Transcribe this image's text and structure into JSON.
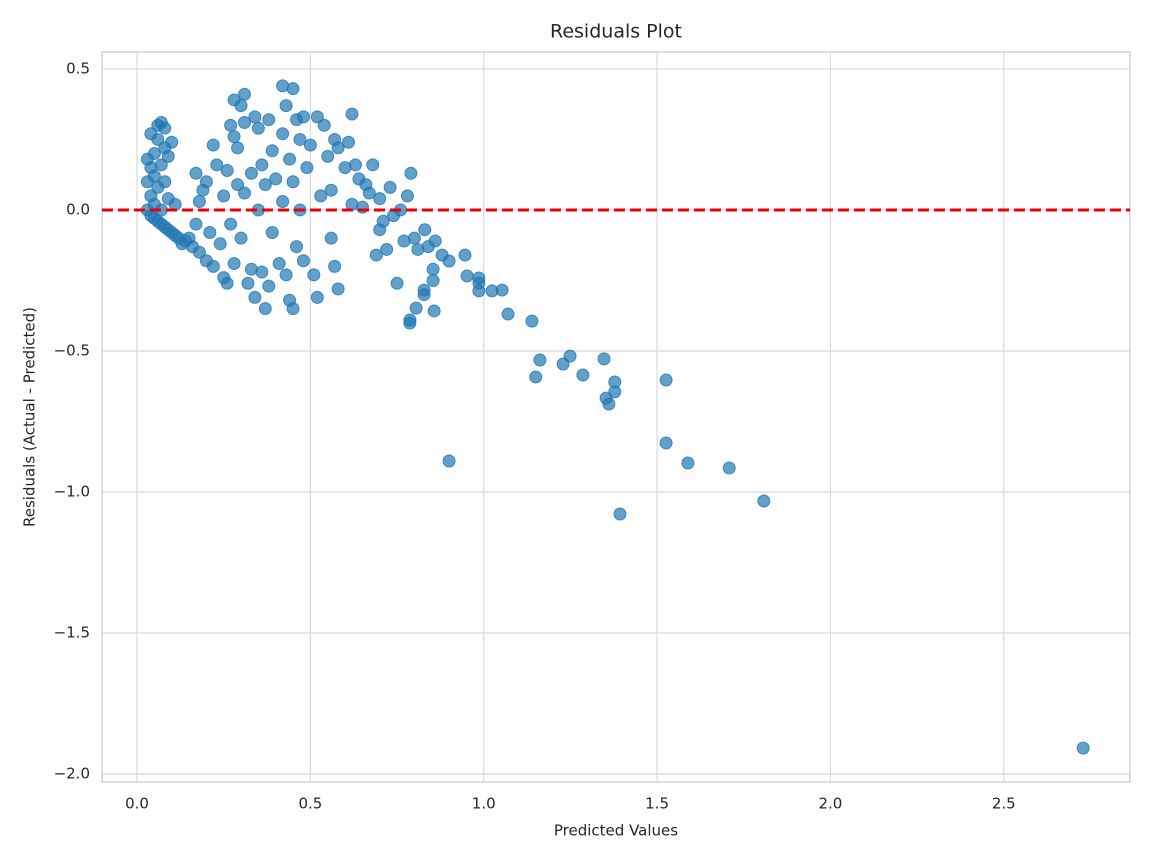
{
  "chart_data": {
    "type": "scatter",
    "title": "Residuals Plot",
    "x_label": "Predicted Values",
    "y_label": "Residuals (Actual - Predicted)",
    "color": "#1f77b4",
    "grid": true,
    "xlim": [
      -0.101,
      2.864
    ],
    "ylim": [
      -2.028,
      0.56
    ],
    "xticks": [
      {
        "value": 0,
        "label": "0.0"
      },
      0.5,
      {
        "value": 1,
        "label": "1.0"
      },
      1.5,
      {
        "value": 2,
        "label": "2.0"
      },
      2.5
    ],
    "yticks": [
      {
        "value": -2,
        "label": "−2.0"
      },
      {
        "value": -1.5,
        "label": "−1.5"
      },
      {
        "value": -1,
        "label": "−1.0"
      },
      {
        "value": -0.5,
        "label": "−0.5"
      },
      {
        "value": 0,
        "label": "0.0"
      },
      0.5
    ],
    "reference_line": {
      "y": 0,
      "color": "#e8000b",
      "style": "dashed"
    },
    "x": [
      0.03,
      0.03,
      0.03,
      0.04,
      0.04,
      0.04,
      0.04,
      0.05,
      0.05,
      0.05,
      0.05,
      0.06,
      0.06,
      0.06,
      0.06,
      0.07,
      0.07,
      0.07,
      0.07,
      0.08,
      0.08,
      0.08,
      0.08,
      0.09,
      0.09,
      0.09,
      0.1,
      0.1,
      0.11,
      0.11,
      0.12,
      0.13,
      0.14,
      0.15,
      0.16,
      0.17,
      0.17,
      0.18,
      0.18,
      0.19,
      0.2,
      0.2,
      0.21,
      0.22,
      0.22,
      0.23,
      0.24,
      0.25,
      0.25,
      0.26,
      0.26,
      0.27,
      0.27,
      0.28,
      0.28,
      0.28,
      0.29,
      0.29,
      0.3,
      0.3,
      0.31,
      0.31,
      0.31,
      0.32,
      0.33,
      0.33,
      0.34,
      0.34,
      0.35,
      0.35,
      0.36,
      0.36,
      0.37,
      0.37,
      0.38,
      0.38,
      0.39,
      0.39,
      0.4,
      0.41,
      0.42,
      0.42,
      0.42,
      0.43,
      0.43,
      0.44,
      0.44,
      0.45,
      0.45,
      0.45,
      0.46,
      0.46,
      0.47,
      0.47,
      0.48,
      0.48,
      0.49,
      0.5,
      0.51,
      0.52,
      0.52,
      0.53,
      0.54,
      0.55,
      0.56,
      0.56,
      0.57,
      0.57,
      0.58,
      0.58,
      0.6,
      0.61,
      0.62,
      0.62,
      0.63,
      0.64,
      0.65,
      0.66,
      0.67,
      0.68,
      0.69,
      0.7,
      0.7,
      0.71,
      0.72,
      0.73,
      0.74,
      0.75,
      0.76,
      0.77,
      0.78,
      0.79,
      0.8,
      0.81,
      0.83,
      0.84,
      0.86,
      0.88,
      2.729,
      1.808,
      1.708,
      1.589,
      1.526,
      1.526,
      1.393,
      0.9,
      1.353,
      1.361,
      1.378,
      1.378,
      1.347,
      1.286,
      1.249,
      1.229,
      1.162,
      1.15,
      1.139,
      1.07,
      1.053,
      1.024,
      0.986,
      0.986,
      0.986,
      0.952,
      0.946,
      0.9,
      0.787,
      0.787,
      0.805,
      0.857,
      0.828,
      0.828,
      0.854,
      0.854
    ],
    "values": [
      0.0,
      0.1,
      0.18,
      -0.02,
      0.05,
      0.15,
      0.27,
      -0.03,
      0.02,
      0.12,
      0.2,
      -0.04,
      0.08,
      0.25,
      0.3,
      -0.05,
      0.0,
      0.16,
      0.31,
      -0.06,
      0.1,
      0.22,
      0.29,
      -0.07,
      0.04,
      0.19,
      -0.08,
      0.24,
      -0.09,
      0.02,
      -0.1,
      -0.12,
      -0.11,
      -0.1,
      -0.13,
      -0.05,
      0.13,
      -0.15,
      0.03,
      0.07,
      -0.18,
      0.1,
      -0.08,
      0.23,
      -0.2,
      0.16,
      -0.12,
      -0.24,
      0.05,
      -0.26,
      0.14,
      0.3,
      -0.05,
      0.39,
      0.26,
      -0.19,
      0.22,
      0.09,
      0.37,
      -0.1,
      0.41,
      0.31,
      0.06,
      -0.26,
      0.13,
      -0.21,
      0.33,
      -0.31,
      0.29,
      0.0,
      0.16,
      -0.22,
      -0.35,
      0.09,
      0.32,
      -0.27,
      0.21,
      -0.08,
      0.11,
      -0.19,
      0.44,
      0.27,
      0.03,
      0.37,
      -0.23,
      0.18,
      -0.32,
      0.43,
      -0.35,
      0.1,
      0.32,
      -0.13,
      0.25,
      0.0,
      0.33,
      -0.18,
      0.15,
      0.23,
      -0.23,
      0.33,
      -0.31,
      0.05,
      0.3,
      0.19,
      0.07,
      -0.1,
      0.25,
      -0.2,
      0.22,
      -0.28,
      0.15,
      0.24,
      0.34,
      0.02,
      0.16,
      0.11,
      0.01,
      0.09,
      0.06,
      0.16,
      -0.16,
      0.04,
      -0.07,
      -0.04,
      -0.14,
      0.08,
      -0.02,
      -0.26,
      0.0,
      -0.11,
      0.05,
      0.13,
      -0.1,
      -0.14,
      -0.07,
      -0.13,
      -0.11,
      -0.16,
      -1.908,
      -1.032,
      -0.915,
      -0.897,
      -0.826,
      -0.603,
      -1.078,
      -0.89,
      -0.667,
      -0.688,
      -0.645,
      -0.61,
      -0.528,
      -0.585,
      -0.518,
      -0.546,
      -0.532,
      -0.592,
      -0.394,
      -0.369,
      -0.284,
      -0.287,
      -0.259,
      -0.241,
      -0.287,
      -0.234,
      -0.16,
      -0.181,
      -0.401,
      -0.39,
      -0.348,
      -0.358,
      -0.284,
      -0.3,
      -0.25,
      -0.21
    ]
  }
}
